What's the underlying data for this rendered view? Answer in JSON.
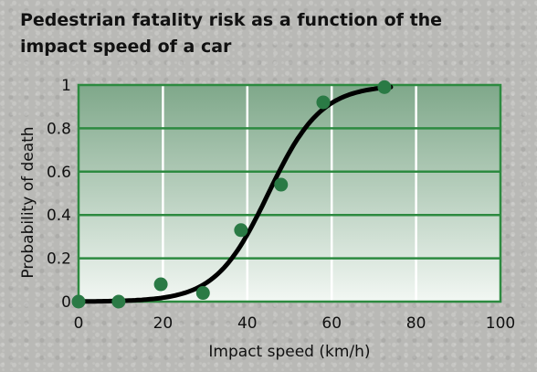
{
  "chart_data": {
    "type": "scatter",
    "title": "Pedestrian fatality risk as a function of the impact speed of a car",
    "xlabel": "Impact speed (km/h)",
    "ylabel": "Probability of death",
    "xlim": [
      0,
      100
    ],
    "ylim": [
      0,
      1
    ],
    "x_ticks": [
      "0",
      "20",
      "40",
      "60",
      "80",
      "100"
    ],
    "y_ticks": [
      "0",
      "0.2",
      "0.4",
      "0.6",
      "0.8",
      "1"
    ],
    "grid": true,
    "points": [
      {
        "x": 0,
        "y": 0.0
      },
      {
        "x": 9.5,
        "y": 0.0
      },
      {
        "x": 19.5,
        "y": 0.08
      },
      {
        "x": 29.5,
        "y": 0.04
      },
      {
        "x": 38.5,
        "y": 0.33
      },
      {
        "x": 48,
        "y": 0.54
      },
      {
        "x": 58,
        "y": 0.92
      },
      {
        "x": 72.5,
        "y": 0.99
      }
    ],
    "fit_curve": {
      "type": "logistic",
      "midpoint": 45,
      "steepness": 0.16
    },
    "colors": {
      "point": "#2a7a45",
      "curve": "#000000",
      "grid": "#2d8a40",
      "plot_top": "#7fa88a",
      "plot_bottom": "#f2f7f3"
    }
  }
}
